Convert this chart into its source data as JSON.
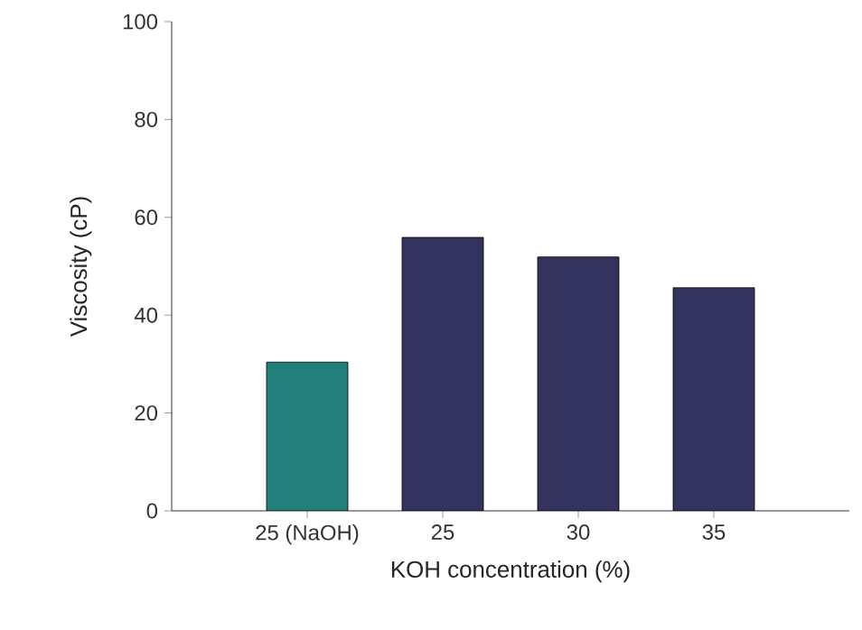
{
  "chart_data": {
    "type": "bar",
    "xlabel": "KOH concentration (%)",
    "ylabel": "Viscosity (cP)",
    "categories": [
      "25 (NaOH)",
      "25",
      "30",
      "35"
    ],
    "values": [
      30.4,
      55.9,
      51.9,
      45.6
    ],
    "colors": [
      "#237f7a",
      "#33335e",
      "#33335e",
      "#33335e"
    ],
    "ylim": [
      0,
      100
    ],
    "yticks": [
      0,
      20,
      40,
      60,
      80,
      100
    ],
    "grid": false
  }
}
